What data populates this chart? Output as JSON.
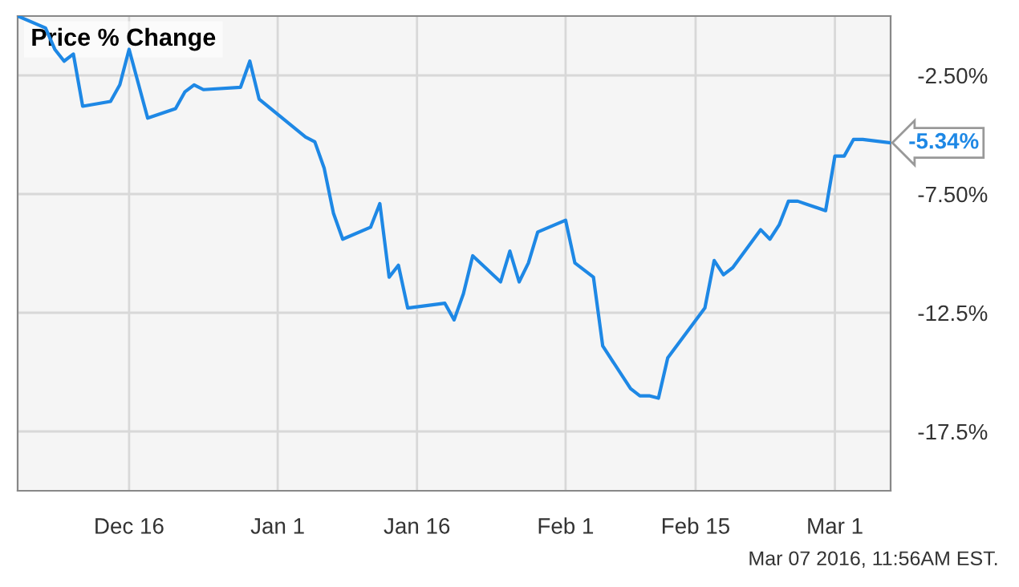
{
  "chart_data": {
    "type": "line",
    "title": "Price % Change",
    "annotations": [
      "Mar 07 2016, 11:56AM EST."
    ],
    "x": [
      "2015-12-04",
      "2015-12-07",
      "2015-12-08",
      "2015-12-09",
      "2015-12-10",
      "2015-12-11",
      "2015-12-14",
      "2015-12-15",
      "2015-12-16",
      "2015-12-18",
      "2015-12-21",
      "2015-12-22",
      "2015-12-23",
      "2015-12-24",
      "2015-12-28",
      "2015-12-29",
      "2015-12-30",
      "2016-01-04",
      "2016-01-05",
      "2016-01-06",
      "2016-01-07",
      "2016-01-08",
      "2016-01-11",
      "2016-01-12",
      "2016-01-13",
      "2016-01-14",
      "2016-01-15",
      "2016-01-19",
      "2016-01-20",
      "2016-01-21",
      "2016-01-22",
      "2016-01-25",
      "2016-01-26",
      "2016-01-27",
      "2016-01-28",
      "2016-01-29",
      "2016-02-01",
      "2016-02-02",
      "2016-02-04",
      "2016-02-05",
      "2016-02-08",
      "2016-02-09",
      "2016-02-10",
      "2016-02-11",
      "2016-02-12",
      "2016-02-16",
      "2016-02-17",
      "2016-02-18",
      "2016-02-19",
      "2016-02-22",
      "2016-02-23",
      "2016-02-24",
      "2016-02-25",
      "2016-02-26",
      "2016-02-29",
      "2016-03-01",
      "2016-03-02",
      "2016-03-03",
      "2016-03-04",
      "2016-03-07"
    ],
    "series": [
      {
        "color": "#1e88e5",
        "values": [
          0.0,
          -0.5,
          -1.4,
          -1.9,
          -1.6,
          -3.8,
          -3.6,
          -2.9,
          -1.4,
          -4.3,
          -3.9,
          -3.2,
          -2.9,
          -3.1,
          -3.0,
          -1.9,
          -3.5,
          -5.1,
          -5.3,
          -6.4,
          -8.3,
          -9.4,
          -8.9,
          -7.9,
          -11.0,
          -10.5,
          -12.3,
          -12.1,
          -12.8,
          -11.7,
          -10.1,
          -11.2,
          -9.9,
          -11.2,
          -10.4,
          -9.1,
          -8.6,
          -10.4,
          -11.0,
          -13.9,
          -15.7,
          -16.0,
          -16.0,
          -16.1,
          -14.4,
          -12.3,
          -10.3,
          -10.9,
          -10.6,
          -9.0,
          -9.4,
          -8.8,
          -7.8,
          -7.8,
          -8.2,
          -5.9,
          -5.9,
          -5.2,
          -5.2,
          -5.34
        ],
        "value_labels": [
          null,
          null,
          null,
          null,
          null,
          null,
          null,
          null,
          null,
          null,
          null,
          null,
          null,
          null,
          null,
          null,
          null,
          null,
          null,
          null,
          null,
          null,
          null,
          null,
          null,
          null,
          null,
          null,
          null,
          null,
          null,
          null,
          null,
          null,
          null,
          null,
          null,
          null,
          null,
          null,
          null,
          null,
          null,
          null,
          null,
          null,
          null,
          null,
          null,
          null,
          null,
          null,
          null,
          null,
          null,
          null,
          null,
          null,
          null,
          "-5.34%"
        ]
      }
    ],
    "xlim": [
      "2015-12-04",
      "2016-03-07"
    ],
    "xticks": [
      {
        "value": "2015-12-16",
        "label": "Dec 16"
      },
      {
        "value": "2016-01-01",
        "label": "Jan 1"
      },
      {
        "value": "2016-01-16",
        "label": "Jan 16"
      },
      {
        "value": "2016-02-01",
        "label": "Feb 1"
      },
      {
        "value": "2016-02-15",
        "label": "Feb 15"
      },
      {
        "value": "2016-03-01",
        "label": "Mar 1"
      }
    ],
    "ylim": [
      -20,
      0
    ],
    "yticks": [
      {
        "value": -2.5,
        "label": "-2.50%"
      },
      {
        "value": -7.5,
        "label": "-7.50%"
      },
      {
        "value": -12.5,
        "label": "-12.5%"
      },
      {
        "value": -17.5,
        "label": "-17.5%"
      }
    ],
    "grid": true,
    "legend": false,
    "marker": "none",
    "line_style": "solid"
  }
}
